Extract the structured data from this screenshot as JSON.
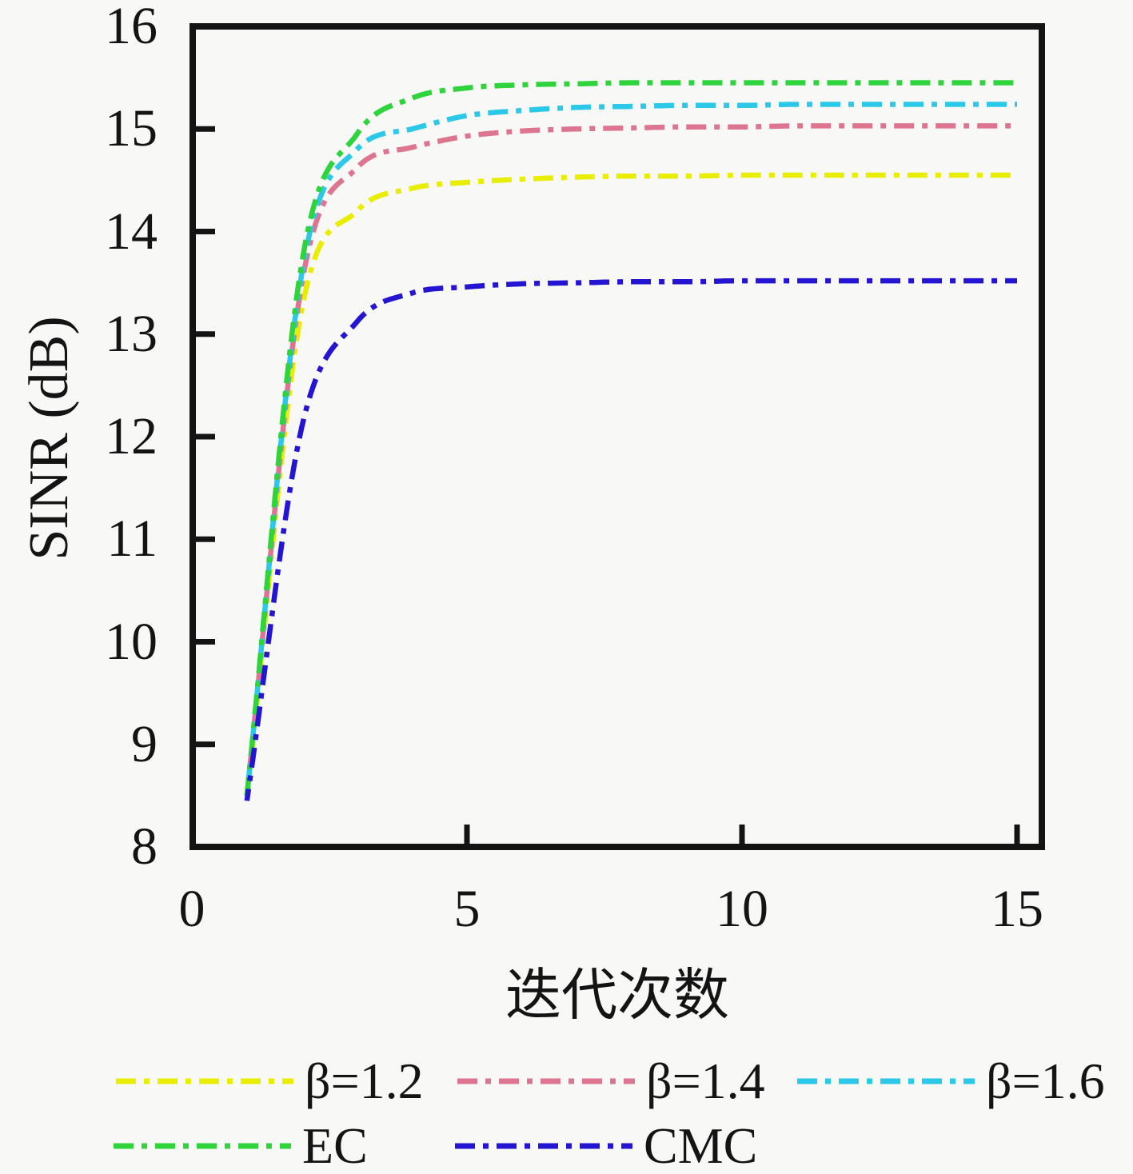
{
  "page": {
    "background": "#f8f8f6",
    "axis_color": "#141414"
  },
  "chart_data": {
    "type": "line",
    "title": "",
    "xlabel": "迭代次数",
    "ylabel": "SINR (dB)",
    "xlim": [
      0,
      15.45
    ],
    "ylim": [
      8,
      16
    ],
    "x_ticks": [
      0,
      5,
      10,
      15
    ],
    "y_ticks": [
      16,
      15,
      14,
      13,
      12,
      11,
      10,
      9,
      8
    ],
    "grid": false,
    "line_style": "dash-dot",
    "legend_position": "below-chart-two-rows",
    "x": [
      1,
      2,
      3,
      4,
      5,
      6,
      7,
      8,
      9,
      10,
      11,
      12,
      13,
      14,
      15
    ],
    "series": [
      {
        "name": "β=1.2",
        "color": "#e9ee00",
        "values": [
          8.5,
          13.25,
          14.2,
          14.42,
          14.48,
          14.51,
          14.53,
          14.54,
          14.54,
          14.55,
          14.55,
          14.55,
          14.55,
          14.55,
          14.55
        ]
      },
      {
        "name": "β=1.4",
        "color": "#dd7590",
        "values": [
          8.5,
          13.5,
          14.62,
          14.82,
          14.93,
          14.98,
          15.0,
          15.01,
          15.02,
          15.02,
          15.03,
          15.03,
          15.03,
          15.03,
          15.03
        ]
      },
      {
        "name": "β=1.6",
        "color": "#2cc8e8",
        "values": [
          8.5,
          13.6,
          14.8,
          15.0,
          15.13,
          15.18,
          15.21,
          15.22,
          15.23,
          15.23,
          15.24,
          15.24,
          15.24,
          15.24,
          15.24
        ]
      },
      {
        "name": "EC",
        "color": "#2fd33c",
        "values": [
          8.5,
          13.7,
          14.95,
          15.3,
          15.4,
          15.43,
          15.44,
          15.45,
          15.45,
          15.45,
          15.45,
          15.45,
          15.45,
          15.45,
          15.45
        ]
      },
      {
        "name": "CMC",
        "color": "#2415d2",
        "values": [
          8.45,
          12.1,
          13.12,
          13.4,
          13.46,
          13.49,
          13.5,
          13.51,
          13.51,
          13.52,
          13.52,
          13.52,
          13.52,
          13.52,
          13.52
        ]
      }
    ]
  }
}
